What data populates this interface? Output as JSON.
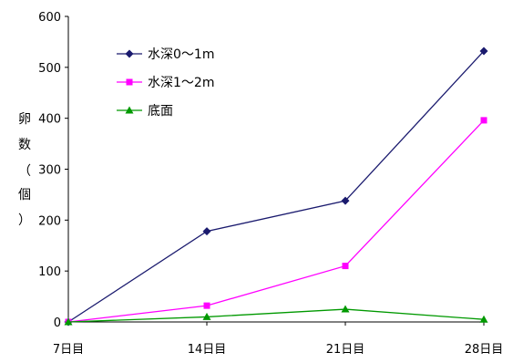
{
  "chart_data": {
    "type": "line",
    "title": "",
    "xlabel": "",
    "ylabel": "卵数（個）",
    "ylabel_chars": [
      "卵",
      "数",
      "（",
      "個",
      "）"
    ],
    "categories": [
      "7日目",
      "14日目",
      "21日目",
      "28日目"
    ],
    "ylim": [
      0,
      600
    ],
    "yticks": [
      0,
      100,
      200,
      300,
      400,
      500,
      600
    ],
    "grid": false,
    "legend_position": "top-left",
    "series": [
      {
        "name": "水深0～1m",
        "color": "#1a1a6e",
        "marker": "diamond",
        "values": [
          0,
          178,
          238,
          532
        ]
      },
      {
        "name": "水深1～2m",
        "color": "#ff00ff",
        "marker": "square",
        "values": [
          0,
          32,
          110,
          396
        ]
      },
      {
        "name": "底面",
        "color": "#009900",
        "marker": "triangle",
        "values": [
          0,
          10,
          25,
          5
        ]
      }
    ]
  }
}
